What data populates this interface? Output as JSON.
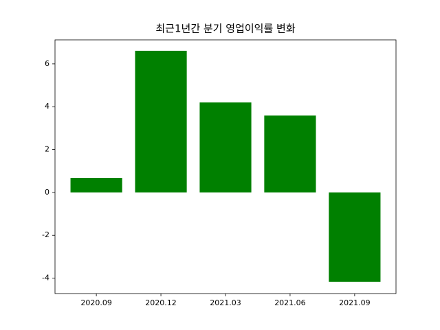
{
  "chart_data": {
    "type": "bar",
    "title": "최근1년간 분기 영업이익률 변화",
    "categories": [
      "2020.09",
      "2020.12",
      "2021.03",
      "2021.06",
      "2021.09"
    ],
    "values": [
      0.67,
      6.61,
      4.2,
      3.59,
      -4.17
    ],
    "color": "#008000",
    "ylim": [
      -4.72,
      7.12
    ],
    "yticks": [
      -4,
      -2,
      0,
      2,
      4,
      6
    ],
    "grid": false
  }
}
